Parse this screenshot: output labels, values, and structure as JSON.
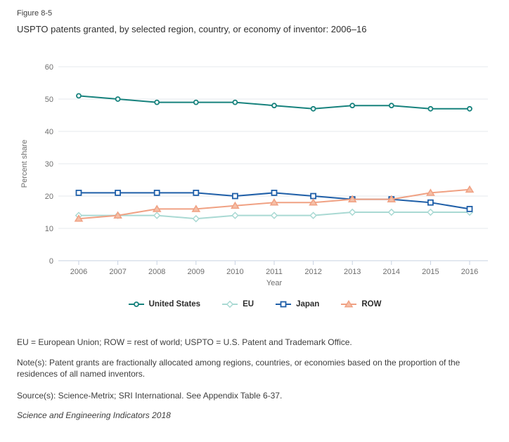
{
  "figure_label": "Figure 8-5",
  "title": "USPTO patents granted, by selected region, country, or economy of inventor: 2006–16",
  "colors": {
    "grid": "#e6e9ec",
    "axis": "#c7d2e2",
    "tick_text": "#6e6e6e",
    "title_text": "#2f2f2f",
    "footer_text": "#3d3d3d"
  },
  "chart_data": {
    "type": "line",
    "x": [
      2006,
      2007,
      2008,
      2009,
      2010,
      2011,
      2012,
      2013,
      2014,
      2015,
      2016
    ],
    "xlabel": "Year",
    "ylabel": "Percent share",
    "ylim": [
      0,
      60
    ],
    "yticks": [
      0,
      10,
      20,
      30,
      40,
      50,
      60
    ],
    "grid": true,
    "legend_position": "bottom",
    "series": [
      {
        "name": "United States",
        "marker": "circle",
        "color": "#17827d",
        "marker_fill": "#ffffff",
        "values": [
          51,
          50,
          49,
          49,
          49,
          48,
          47,
          48,
          48,
          47,
          47
        ]
      },
      {
        "name": "EU",
        "marker": "diamond",
        "color": "#a9d9d3",
        "marker_fill": "#ffffff",
        "values": [
          14,
          14,
          14,
          13,
          14,
          14,
          14,
          15,
          15,
          15,
          15
        ]
      },
      {
        "name": "Japan",
        "marker": "square",
        "color": "#1f5fa8",
        "marker_fill": "#ffffff",
        "values": [
          21,
          21,
          21,
          21,
          20,
          21,
          20,
          19,
          19,
          18,
          16
        ]
      },
      {
        "name": "ROW",
        "marker": "triangle",
        "color": "#f0a183",
        "marker_fill": "#f5bfa7",
        "values": [
          13,
          14,
          16,
          16,
          17,
          18,
          18,
          19,
          19,
          21,
          22
        ]
      }
    ]
  },
  "footer": {
    "abbreviations": "EU = European Union; ROW = rest of world; USPTO = U.S. Patent and Trademark Office.",
    "note": "Note(s): Patent grants are fractionally allocated among regions, countries, or economies based on the proportion of the residences of all named inventors.",
    "source": "Source(s): Science-Metrix; SRI International. See Appendix Table 6-37.",
    "publication": "Science and Engineering Indicators 2018"
  }
}
